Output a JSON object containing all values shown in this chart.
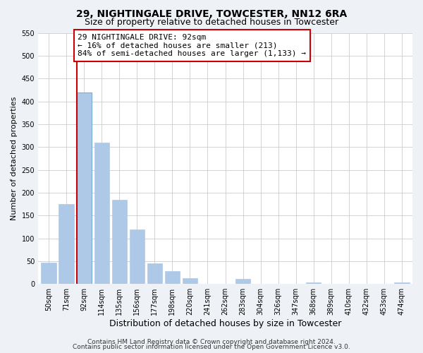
{
  "title": "29, NIGHTINGALE DRIVE, TOWCESTER, NN12 6RA",
  "subtitle": "Size of property relative to detached houses in Towcester",
  "xlabel": "Distribution of detached houses by size in Towcester",
  "ylabel": "Number of detached properties",
  "bar_labels": [
    "50sqm",
    "71sqm",
    "92sqm",
    "114sqm",
    "135sqm",
    "156sqm",
    "177sqm",
    "198sqm",
    "220sqm",
    "241sqm",
    "262sqm",
    "283sqm",
    "304sqm",
    "326sqm",
    "347sqm",
    "368sqm",
    "389sqm",
    "410sqm",
    "432sqm",
    "453sqm",
    "474sqm"
  ],
  "bar_values": [
    47,
    175,
    420,
    310,
    185,
    120,
    45,
    28,
    13,
    0,
    0,
    11,
    0,
    0,
    0,
    4,
    0,
    0,
    0,
    0,
    3
  ],
  "bar_color": "#aec9e8",
  "bar_edge_color": "#aec9e8",
  "highlight_bar_index": 2,
  "highlight_color": "#cc0000",
  "annotation_text": "29 NIGHTINGALE DRIVE: 92sqm\n← 16% of detached houses are smaller (213)\n84% of semi-detached houses are larger (1,133) →",
  "annotation_box_color": "#ffffff",
  "annotation_box_edge": "#cc0000",
  "ylim": [
    0,
    550
  ],
  "yticks": [
    0,
    50,
    100,
    150,
    200,
    250,
    300,
    350,
    400,
    450,
    500,
    550
  ],
  "footnote1": "Contains HM Land Registry data © Crown copyright and database right 2024.",
  "footnote2": "Contains public sector information licensed under the Open Government Licence v3.0.",
  "bg_color": "#eef2f7",
  "plot_bg_color": "#ffffff",
  "title_fontsize": 10,
  "subtitle_fontsize": 9,
  "xlabel_fontsize": 9,
  "ylabel_fontsize": 8,
  "tick_fontsize": 7,
  "annotation_fontsize": 8,
  "footnote_fontsize": 6.5
}
